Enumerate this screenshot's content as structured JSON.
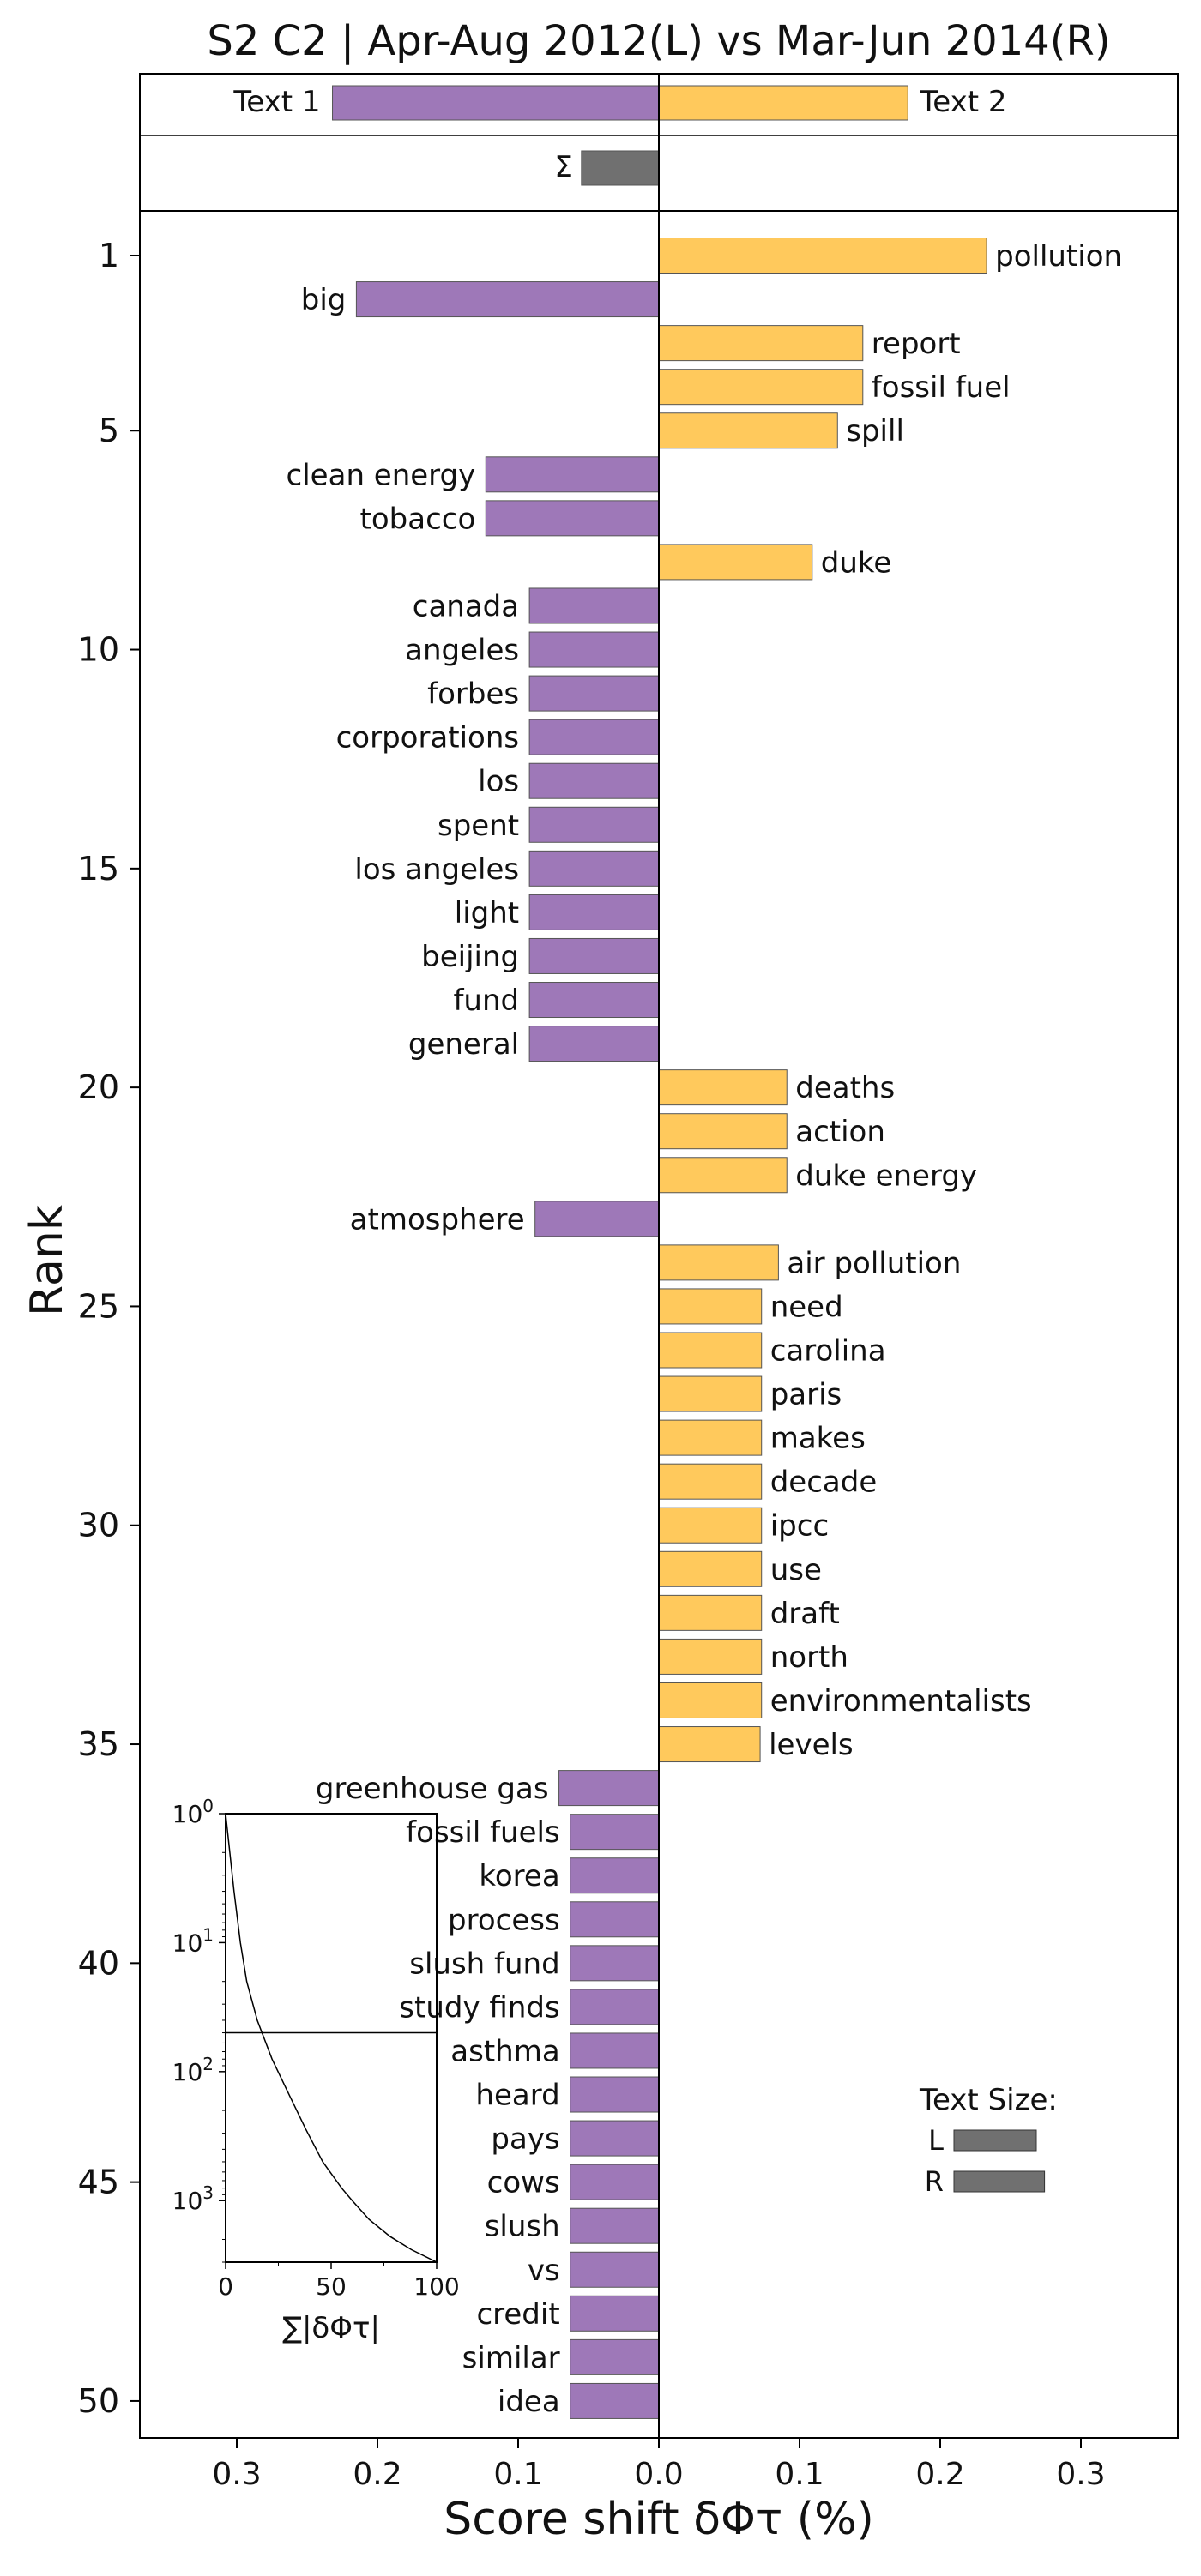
{
  "chart_data": {
    "type": "bar",
    "orientation": "horizontal",
    "title": "S2 C2 | Apr-Aug 2012(L) vs Mar-Jun 2014(R)",
    "xlabel": "Score shift δΦτ (%)",
    "ylabel": "Rank",
    "xlim": [
      -0.37,
      0.37
    ],
    "xticks": [
      -0.3,
      -0.2,
      -0.1,
      0.0,
      0.1,
      0.2,
      0.3
    ],
    "xtick_labels": [
      "0.3",
      "0.2",
      "0.1",
      "0.0",
      "0.1",
      "0.2",
      "0.3"
    ],
    "yticks": [
      1,
      5,
      10,
      15,
      20,
      25,
      30,
      35,
      40,
      45,
      50
    ],
    "colors": {
      "left": "#9e78b8",
      "right": "#ffc95c",
      "sum": "#707070",
      "edge": "#555555"
    },
    "summary_bars": {
      "text1": {
        "label": "Text 1",
        "value": -0.232
      },
      "text2": {
        "label": "Text 2",
        "value": 0.177
      },
      "sigma": {
        "label": "Σ",
        "value": -0.055
      }
    },
    "words": [
      {
        "rank": 1,
        "label": "pollution",
        "value": 0.233
      },
      {
        "rank": 2,
        "label": "big",
        "value": -0.215
      },
      {
        "rank": 3,
        "label": "report",
        "value": 0.145
      },
      {
        "rank": 4,
        "label": "fossil fuel",
        "value": 0.145
      },
      {
        "rank": 5,
        "label": "spill",
        "value": 0.127
      },
      {
        "rank": 6,
        "label": "clean energy",
        "value": -0.123
      },
      {
        "rank": 7,
        "label": "tobacco",
        "value": -0.123
      },
      {
        "rank": 8,
        "label": "duke",
        "value": 0.109
      },
      {
        "rank": 9,
        "label": "canada",
        "value": -0.092
      },
      {
        "rank": 10,
        "label": "angeles",
        "value": -0.092
      },
      {
        "rank": 11,
        "label": "forbes",
        "value": -0.092
      },
      {
        "rank": 12,
        "label": "corporations",
        "value": -0.092
      },
      {
        "rank": 13,
        "label": "los",
        "value": -0.092
      },
      {
        "rank": 14,
        "label": "spent",
        "value": -0.092
      },
      {
        "rank": 15,
        "label": "los angeles",
        "value": -0.092
      },
      {
        "rank": 16,
        "label": "light",
        "value": -0.092
      },
      {
        "rank": 17,
        "label": "beijing",
        "value": -0.092
      },
      {
        "rank": 18,
        "label": "fund",
        "value": -0.092
      },
      {
        "rank": 19,
        "label": "general",
        "value": -0.092
      },
      {
        "rank": 20,
        "label": "deaths",
        "value": 0.091
      },
      {
        "rank": 21,
        "label": "action",
        "value": 0.091
      },
      {
        "rank": 22,
        "label": "duke energy",
        "value": 0.091
      },
      {
        "rank": 23,
        "label": "atmosphere",
        "value": -0.088
      },
      {
        "rank": 24,
        "label": "air pollution",
        "value": 0.085
      },
      {
        "rank": 25,
        "label": "need",
        "value": 0.073
      },
      {
        "rank": 26,
        "label": "carolina",
        "value": 0.073
      },
      {
        "rank": 27,
        "label": "paris",
        "value": 0.073
      },
      {
        "rank": 28,
        "label": "makes",
        "value": 0.073
      },
      {
        "rank": 29,
        "label": "decade",
        "value": 0.073
      },
      {
        "rank": 30,
        "label": "ipcc",
        "value": 0.073
      },
      {
        "rank": 31,
        "label": "use",
        "value": 0.073
      },
      {
        "rank": 32,
        "label": "draft",
        "value": 0.073
      },
      {
        "rank": 33,
        "label": "north",
        "value": 0.073
      },
      {
        "rank": 34,
        "label": "environmentalists",
        "value": 0.073
      },
      {
        "rank": 35,
        "label": "levels",
        "value": 0.072
      },
      {
        "rank": 36,
        "label": "greenhouse gas",
        "value": -0.071
      },
      {
        "rank": 37,
        "label": "fossil fuels",
        "value": -0.063
      },
      {
        "rank": 38,
        "label": "korea",
        "value": -0.063
      },
      {
        "rank": 39,
        "label": "process",
        "value": -0.063
      },
      {
        "rank": 40,
        "label": "slush fund",
        "value": -0.063
      },
      {
        "rank": 41,
        "label": "study finds",
        "value": -0.063
      },
      {
        "rank": 42,
        "label": "asthma",
        "value": -0.063
      },
      {
        "rank": 43,
        "label": "heard",
        "value": -0.063
      },
      {
        "rank": 44,
        "label": "pays",
        "value": -0.063
      },
      {
        "rank": 45,
        "label": "cows",
        "value": -0.063
      },
      {
        "rank": 46,
        "label": "slush",
        "value": -0.063
      },
      {
        "rank": 47,
        "label": "vs",
        "value": -0.063
      },
      {
        "rank": 48,
        "label": "credit",
        "value": -0.063
      },
      {
        "rank": 49,
        "label": "similar",
        "value": -0.063
      },
      {
        "rank": 50,
        "label": "idea",
        "value": -0.063
      }
    ],
    "inset": {
      "xlabel": "∑|δΦτ|",
      "xticks": [
        0,
        50,
        100
      ],
      "xlim": [
        0,
        100
      ],
      "ylim": [
        1,
        3000
      ],
      "yscale": "log",
      "yticks": [
        1,
        10,
        100,
        1000
      ],
      "ytick_mantissa": "10",
      "ytick_exponents": [
        "0",
        "1",
        "2",
        "3"
      ],
      "hline_at": 50,
      "curve": [
        [
          0,
          1
        ],
        [
          2,
          2
        ],
        [
          4,
          4
        ],
        [
          7,
          10
        ],
        [
          10,
          20
        ],
        [
          15,
          40
        ],
        [
          22,
          80
        ],
        [
          30,
          150
        ],
        [
          38,
          280
        ],
        [
          46,
          500
        ],
        [
          55,
          800
        ],
        [
          60,
          1000
        ],
        [
          68,
          1400
        ],
        [
          78,
          1900
        ],
        [
          88,
          2400
        ],
        [
          100,
          3000
        ]
      ]
    },
    "legend": {
      "title": "Text Size:",
      "placement": "lower-right",
      "entries": [
        {
          "label": "L",
          "relative_size": 1.0
        },
        {
          "label": "R",
          "relative_size": 1.1
        }
      ]
    }
  }
}
